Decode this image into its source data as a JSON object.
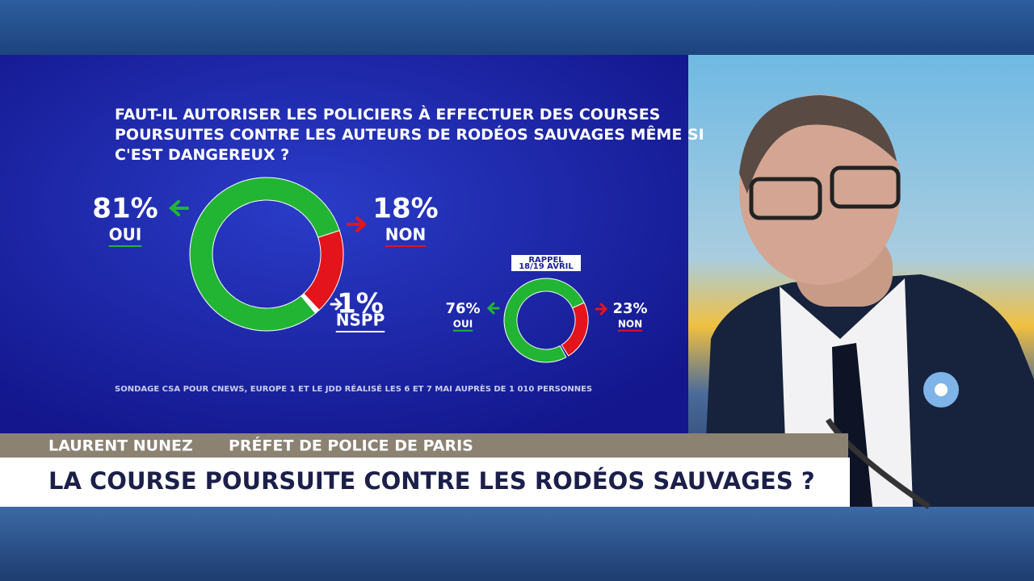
{
  "chart_data": [
    {
      "type": "donut",
      "title": "FAUT-IL AUTORISER LES POLICIERS À EFFECTUER DES COURSES POURSUITES CONTRE LES AUTEURS DE RODÉOS SAUVAGES MÊME SI C'EST DANGEREUX ?",
      "categories": [
        "OUI",
        "NON",
        "NSPP"
      ],
      "values": [
        81,
        18,
        1
      ],
      "value_labels": [
        "81%",
        "18%",
        "1%"
      ],
      "colors": [
        "#22b534",
        "#e3141c",
        "#ffffff"
      ]
    },
    {
      "type": "donut",
      "title": [
        "RAPPEL",
        "18/19 AVRIL"
      ],
      "categories": [
        "OUI",
        "NON"
      ],
      "values": [
        76,
        23
      ],
      "value_labels": [
        "76%",
        "23%"
      ],
      "colors": [
        "#22b534",
        "#e3141c"
      ]
    }
  ],
  "source": "SONDAGE CSA POUR CNEWS, EUROPE 1 ET LE JDD RÉALISÉ LES 6 ET 7 MAI AUPRÈS DE 1 010 PERSONNES",
  "lower_third": {
    "name": "LAURENT NUNEZ",
    "role": "PRÉFET DE POLICE DE PARIS",
    "headline": "LA COURSE POURSUITE CONTRE LES RODÉOS SAUVAGES ?"
  }
}
